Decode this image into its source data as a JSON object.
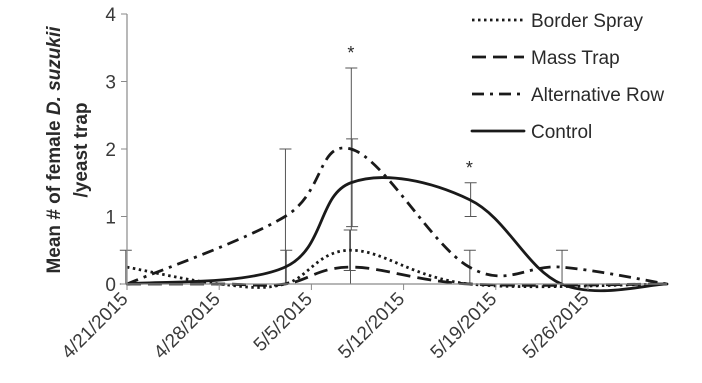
{
  "chart_data": {
    "type": "line",
    "title": "",
    "xlabel": "",
    "ylabel": {
      "prefix": "Mean # of female ",
      "species": "D. suzukii",
      "suffix": "/yeast trap"
    },
    "ylim": [
      0,
      4
    ],
    "yticks": [
      "0",
      "1",
      "2",
      "3",
      "4"
    ],
    "xlim": [
      "4/21/2015",
      "6/1/2015"
    ],
    "xticks": [
      "4/21/2015",
      "4/28/2015",
      "5/5/2015",
      "5/12/2015",
      "5/19/2015",
      "5/26/2015"
    ],
    "grid": false,
    "legend_position": "top-right",
    "series": [
      {
        "name": "Border Spray",
        "style": "dotted",
        "x": [
          "4/21/2015",
          "4/28/2015",
          "5/3/2015",
          "5/8/2015",
          "5/17/2015",
          "6/1/2015"
        ],
        "values": [
          0.25,
          0,
          0,
          0.5,
          0,
          0
        ],
        "error": [
          0.25,
          0,
          0,
          0.3,
          0,
          0
        ]
      },
      {
        "name": "Mass Trap",
        "style": "dashed",
        "x": [
          "4/21/2015",
          "4/28/2015",
          "5/3/2015",
          "5/8/2015",
          "5/17/2015",
          "6/1/2015"
        ],
        "values": [
          0,
          0,
          0,
          0.25,
          0,
          0
        ],
        "error": [
          0,
          0,
          0,
          0.55,
          0,
          0
        ]
      },
      {
        "name": "Alternative Row",
        "style": "dash-dot",
        "x": [
          "4/21/2015",
          "5/3/2015",
          "5/8/2015",
          "5/17/2015",
          "5/24/2015",
          "6/1/2015"
        ],
        "values": [
          0,
          1,
          2,
          0.25,
          0.25,
          0
        ],
        "error": [
          0,
          1,
          1.2,
          0.25,
          0.25,
          0
        ]
      },
      {
        "name": "Control",
        "style": "solid",
        "x": [
          "4/21/2015",
          "5/3/2015",
          "5/8/2015",
          "5/17/2015",
          "5/24/2015",
          "6/1/2015"
        ],
        "values": [
          0,
          0.25,
          1.5,
          1.25,
          0,
          0
        ],
        "error": [
          0,
          0.25,
          0.65,
          0.25,
          0,
          0
        ]
      }
    ],
    "annotations": [
      {
        "x": "5/8/2015",
        "text": "*"
      },
      {
        "x": "5/17/2015",
        "text": "*"
      }
    ]
  }
}
